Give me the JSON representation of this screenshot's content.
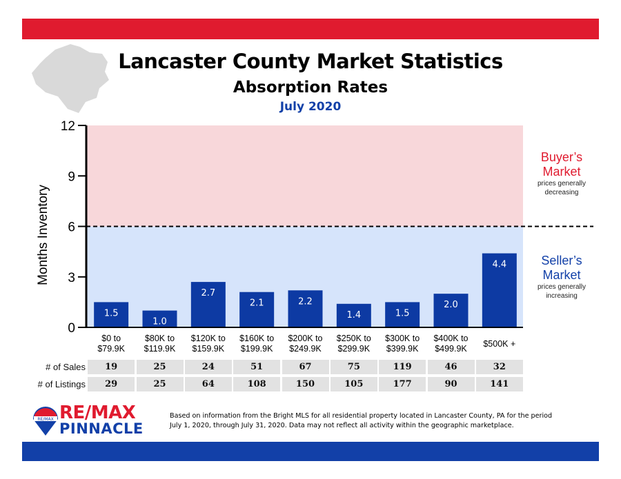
{
  "header": {
    "title": "Lancaster County Market Statistics",
    "subtitle": "Absorption Rates",
    "date": "July 2020"
  },
  "colors": {
    "red": "#e01b2f",
    "blue": "#1240a8",
    "bar": "#0d3aa3",
    "buyer_zone": "#f8d7da",
    "seller_zone": "#d6e4fb"
  },
  "zones": {
    "buyer": {
      "title_line1": "Buyer’s",
      "title_line2": "Market",
      "desc_line1": "prices generally",
      "desc_line2": "decreasing"
    },
    "seller": {
      "title_line1": "Seller’s",
      "title_line2": "Market",
      "desc_line1": "prices generally",
      "desc_line2": "increasing"
    }
  },
  "chart_data": {
    "type": "bar",
    "title": "Absorption Rates",
    "ylabel": "Months Inventory",
    "xlabel": "",
    "ylim": [
      0,
      12
    ],
    "yticks": [
      0,
      3,
      6,
      9,
      12
    ],
    "threshold": 6,
    "categories": [
      [
        "$0 to",
        "$79.9K"
      ],
      [
        "$80K to",
        "$119.9K"
      ],
      [
        "$120K to",
        "$159.9K"
      ],
      [
        "$160K to",
        "$199.9K"
      ],
      [
        "$200K to",
        "$249.9K"
      ],
      [
        "$250K to",
        "$299.9K"
      ],
      [
        "$300K to",
        "$399.9K"
      ],
      [
        "$400K to",
        "$499.9K"
      ],
      [
        "$500K +"
      ]
    ],
    "values": [
      1.5,
      1.0,
      2.7,
      2.1,
      2.2,
      1.4,
      1.5,
      2.0,
      4.4
    ],
    "labels": [
      "1.5",
      "1.0",
      "2.7",
      "2.1",
      "2.2",
      "1.4",
      "1.5",
      "2.0",
      "4.4"
    ]
  },
  "table": {
    "sales_label": "# of Sales",
    "listings_label": "# of Listings",
    "sales": [
      "19",
      "25",
      "24",
      "51",
      "67",
      "75",
      "119",
      "46",
      "32"
    ],
    "listings": [
      "29",
      "25",
      "64",
      "108",
      "150",
      "105",
      "177",
      "90",
      "141"
    ]
  },
  "footer": {
    "brand_line1": "RE/MAX",
    "brand_line2": "PINNACLE",
    "balloon_text": "RE/MAX",
    "note_line1": "Based on information from the Bright MLS for all residential property located in Lancaster County, PA for the period",
    "note_line2": "July 1, 2020, through July 31, 2020.  Data may not reflect all activity within the geographic marketplace."
  }
}
